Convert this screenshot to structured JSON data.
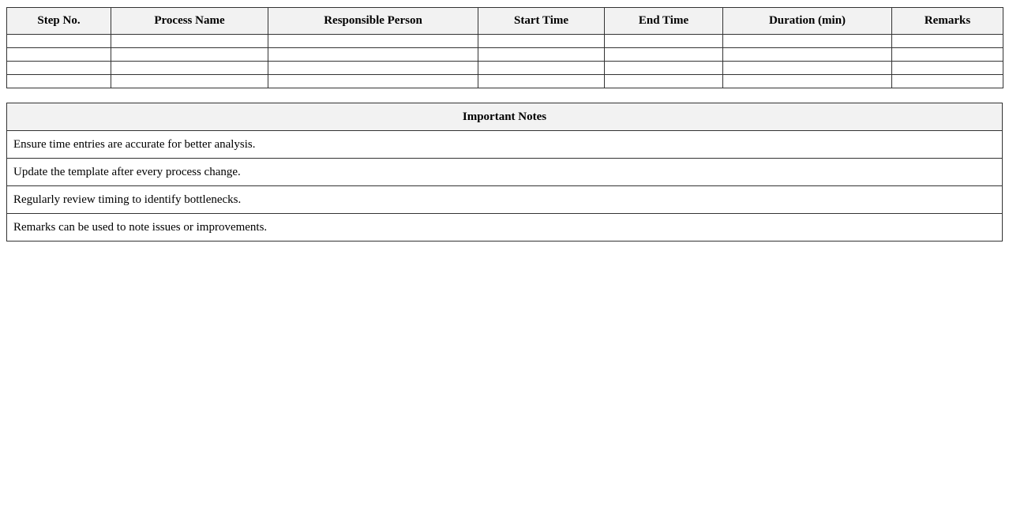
{
  "process_table": {
    "headers": [
      "Step No.",
      "Process Name",
      "Responsible Person",
      "Start Time",
      "End Time",
      "Duration (min)",
      "Remarks"
    ],
    "empty_rows": 4
  },
  "notes": {
    "title": "Important Notes",
    "items": [
      "Ensure time entries are accurate for better analysis.",
      "Update the template after every process change.",
      "Regularly review timing to identify bottlenecks.",
      "Remarks can be used to note issues or improvements."
    ]
  }
}
